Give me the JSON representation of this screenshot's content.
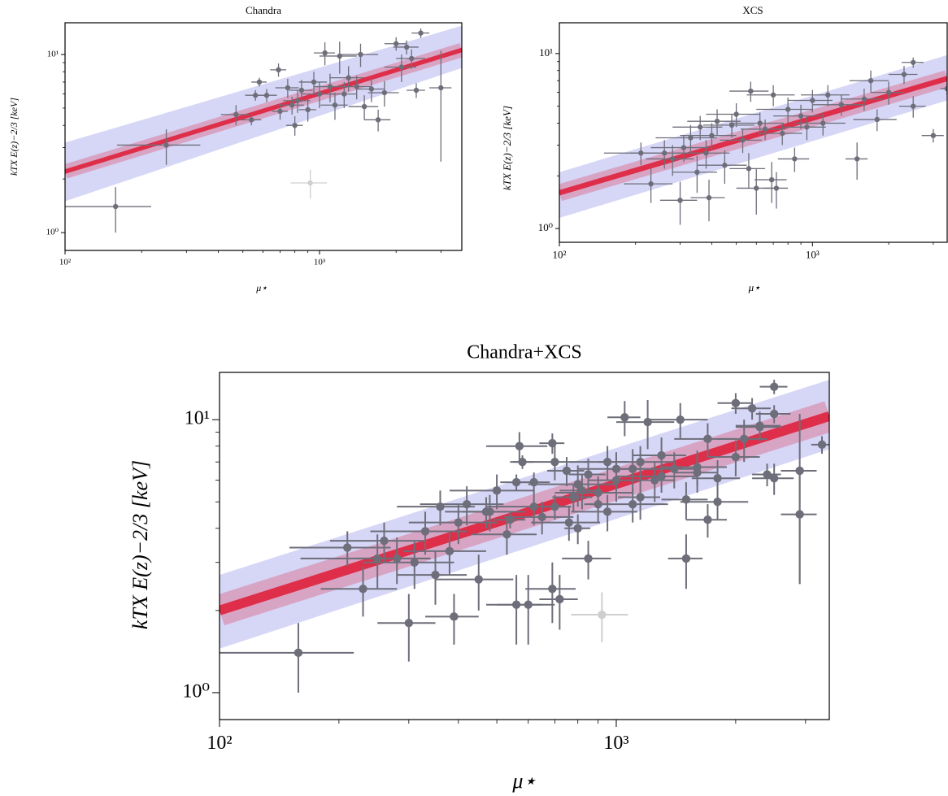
{
  "chart_data": [
    {
      "type": "scatter",
      "title": "Chandra",
      "x_label": "μ⋆",
      "y_label": "kTX E(z)−2/3 [keV]",
      "log_x": true,
      "log_y": true,
      "xlim": [
        100,
        3624
      ],
      "ylim": [
        0.794,
        15.07
      ],
      "xticks": [
        {
          "value": 100,
          "label": "10²"
        },
        {
          "value": 1000,
          "label": "10³"
        }
      ],
      "yticks": [
        {
          "value": 1,
          "label": "10⁰"
        },
        {
          "value": 10,
          "label": "10¹"
        }
      ],
      "xminorticks": [
        200,
        300,
        400,
        500,
        600,
        700,
        800,
        900,
        2000,
        3000
      ],
      "yminorticks": [
        2,
        3,
        4,
        5,
        6,
        7,
        8,
        9
      ],
      "band": {
        "color": "#b4b4f0",
        "x": [
          100,
          3624
        ],
        "lower": [
          1.5,
          8.4
        ],
        "upper": [
          3.2,
          14.5
        ]
      },
      "fit": {
        "color": "#e0102a",
        "x": [
          100,
          3624
        ],
        "values": [
          2.2,
          10.6
        ]
      },
      "series": [
        {
          "color": "#6e6e7a",
          "x": [
            158,
            250,
            470,
            540,
            580,
            560,
            620,
            690,
            700,
            750,
            780,
            800,
            820,
            850,
            900,
            950,
            1000,
            1050,
            1100,
            1150,
            1200,
            1250,
            1300,
            1400,
            1450,
            1500,
            1600,
            1700,
            1800,
            2000,
            2100,
            2200,
            2300,
            2400,
            2500,
            3000
          ],
          "values": [
            1.4,
            3.1,
            4.6,
            4.3,
            7.0,
            5.9,
            5.9,
            8.2,
            4.8,
            6.5,
            5.2,
            4.0,
            5.5,
            6.3,
            4.9,
            7.0,
            6.0,
            10.2,
            6.6,
            5.2,
            9.8,
            6.0,
            7.4,
            6.6,
            10.0,
            5.1,
            6.4,
            4.3,
            6.1,
            11.5,
            8.5,
            11.0,
            9.5,
            6.3,
            13.2,
            6.5
          ],
          "xerr": [
            60,
            90,
            60,
            50,
            40,
            50,
            60,
            50,
            50,
            80,
            90,
            60,
            100,
            90,
            70,
            120,
            150,
            100,
            150,
            140,
            200,
            150,
            200,
            200,
            250,
            200,
            200,
            200,
            250,
            200,
            300,
            250,
            300,
            200,
            200,
            300
          ],
          "yerr": [
            0.4,
            0.7,
            0.6,
            0.3,
            0.4,
            0.4,
            0.5,
            0.7,
            0.5,
            0.8,
            0.6,
            0.5,
            0.8,
            0.9,
            0.7,
            1.0,
            1.0,
            1.5,
            1.2,
            0.9,
            2.0,
            1.0,
            1.2,
            1.0,
            1.5,
            0.8,
            1.0,
            0.6,
            1.0,
            1.0,
            1.5,
            1.0,
            1.2,
            0.6,
            0.8,
            4.0
          ]
        },
        {
          "color": "#cfcfcf",
          "x": [
            920
          ],
          "values": [
            1.9
          ],
          "xerr": [
            150
          ],
          "yerr": [
            0.35
          ]
        }
      ]
    },
    {
      "type": "scatter",
      "title": "XCS",
      "x_label": "μ⋆",
      "y_label": "kTX E(z)−2/3 [keV]",
      "log_x": true,
      "log_y": true,
      "xlim": [
        100,
        3405
      ],
      "ylim": [
        0.834,
        15.0
      ],
      "xticks": [
        {
          "value": 100,
          "label": "10²"
        },
        {
          "value": 1000,
          "label": "10³"
        }
      ],
      "yticks": [
        {
          "value": 1,
          "label": "10⁰"
        },
        {
          "value": 10,
          "label": "10¹"
        }
      ],
      "xminorticks": [
        200,
        300,
        400,
        500,
        600,
        700,
        800,
        900,
        2000,
        3000
      ],
      "yminorticks": [
        2,
        3,
        4,
        5,
        6,
        7,
        8,
        9
      ],
      "band": {
        "color": "#b4b4f0",
        "x": [
          100,
          3405
        ],
        "lower": [
          1.15,
          5.4
        ],
        "upper": [
          2.1,
          9.8
        ]
      },
      "fit": {
        "color": "#e0102a",
        "x": [
          100,
          3405
        ],
        "values": [
          1.6,
          7.2
        ]
      },
      "series": [
        {
          "color": "#6e6e7a",
          "x": [
            210,
            230,
            260,
            280,
            300,
            310,
            330,
            350,
            360,
            380,
            390,
            400,
            420,
            450,
            480,
            500,
            530,
            560,
            570,
            600,
            620,
            650,
            690,
            700,
            720,
            760,
            800,
            850,
            900,
            950,
            1000,
            1100,
            1150,
            1300,
            1500,
            1600,
            1700,
            1800,
            2000,
            2300,
            2500,
            2500,
            3000,
            3400
          ],
          "values": [
            2.7,
            1.8,
            2.7,
            2.5,
            1.45,
            2.9,
            3.3,
            2.1,
            3.8,
            2.7,
            1.5,
            3.4,
            4.1,
            2.3,
            3.9,
            4.5,
            3.2,
            2.2,
            6.1,
            1.7,
            4.0,
            3.7,
            1.9,
            5.8,
            1.7,
            3.5,
            4.8,
            2.5,
            4.4,
            3.8,
            5.4,
            4.0,
            5.8,
            5.1,
            2.5,
            5.5,
            7.0,
            4.2,
            6.0,
            7.6,
            5.0,
            8.9,
            3.4,
            6.3
          ],
          "xerr": [
            60,
            50,
            70,
            60,
            50,
            80,
            90,
            70,
            80,
            90,
            60,
            100,
            100,
            100,
            110,
            120,
            100,
            90,
            100,
            100,
            150,
            130,
            100,
            150,
            80,
            150,
            200,
            120,
            200,
            180,
            200,
            250,
            250,
            300,
            150,
            300,
            300,
            350,
            300,
            300,
            300,
            250,
            300,
            200
          ],
          "yerr": [
            0.4,
            0.4,
            0.5,
            0.5,
            0.4,
            0.5,
            0.6,
            0.5,
            0.6,
            0.5,
            0.4,
            0.6,
            0.7,
            0.5,
            0.6,
            0.7,
            0.5,
            0.5,
            0.8,
            0.5,
            0.6,
            0.5,
            0.5,
            0.8,
            0.4,
            0.5,
            0.8,
            0.4,
            0.7,
            0.6,
            0.8,
            0.6,
            0.8,
            0.7,
            0.6,
            0.8,
            1.0,
            0.6,
            0.9,
            0.9,
            0.7,
            0.6,
            0.3,
            0.5
          ]
        }
      ]
    },
    {
      "type": "scatter",
      "title": "Chandra+XCS",
      "x_label": "μ⋆",
      "y_label": "kTX E(z)−2/3 [keV]",
      "log_x": true,
      "log_y": true,
      "xlim": [
        100,
        3443
      ],
      "ylim": [
        0.797,
        14.9
      ],
      "xticks": [
        {
          "value": 100,
          "label": "10²"
        },
        {
          "value": 1000,
          "label": "10³"
        }
      ],
      "yticks": [
        {
          "value": 1,
          "label": "10⁰"
        },
        {
          "value": 10,
          "label": "10¹"
        }
      ],
      "xminorticks": [
        200,
        300,
        400,
        500,
        600,
        700,
        800,
        900,
        2000,
        3000
      ],
      "yminorticks": [
        2,
        3,
        4,
        5,
        6,
        7,
        8,
        9
      ],
      "band": {
        "color": "#b4b4f0",
        "x": [
          100,
          3443
        ],
        "lower": [
          1.45,
          7.8
        ],
        "upper": [
          2.7,
          14.0
        ]
      },
      "fit": {
        "color": "#e0102a",
        "x": [
          100,
          3443
        ],
        "values": [
          2.0,
          10.3
        ]
      },
      "series": [
        {
          "color": "#6e6e7a",
          "x": [
            158,
            250,
            470,
            540,
            580,
            560,
            620,
            690,
            700,
            750,
            780,
            800,
            820,
            850,
            900,
            950,
            1000,
            1050,
            1100,
            1150,
            1200,
            1250,
            1300,
            1400,
            1450,
            1500,
            1600,
            1700,
            1800,
            2000,
            2100,
            2200,
            2300,
            2400,
            2500,
            2900
          ],
          "values": [
            1.4,
            3.1,
            4.6,
            4.3,
            7.0,
            5.9,
            5.9,
            8.2,
            4.8,
            6.5,
            5.2,
            4.0,
            5.5,
            6.3,
            4.9,
            7.0,
            6.0,
            10.2,
            6.6,
            5.2,
            9.8,
            6.0,
            7.4,
            6.6,
            10.0,
            5.1,
            6.4,
            4.3,
            6.1,
            11.5,
            8.5,
            11.0,
            9.5,
            6.3,
            13.2,
            6.5
          ],
          "xerr": [
            60,
            90,
            60,
            50,
            40,
            50,
            60,
            50,
            50,
            80,
            90,
            60,
            100,
            90,
            70,
            120,
            150,
            100,
            150,
            140,
            200,
            150,
            200,
            200,
            250,
            200,
            200,
            200,
            250,
            200,
            300,
            250,
            300,
            200,
            200,
            300
          ],
          "yerr": [
            0.4,
            0.7,
            0.6,
            0.3,
            0.4,
            0.4,
            0.5,
            0.7,
            0.5,
            0.8,
            0.6,
            0.5,
            0.8,
            0.9,
            0.7,
            1.0,
            1.0,
            1.5,
            1.2,
            0.9,
            2.0,
            1.0,
            1.2,
            1.0,
            1.5,
            0.8,
            1.0,
            0.6,
            1.0,
            1.0,
            1.5,
            1.0,
            1.2,
            0.6,
            0.8,
            4.0
          ]
        },
        {
          "color": "#6e6e7a",
          "x": [
            210,
            230,
            260,
            280,
            300,
            310,
            330,
            350,
            360,
            380,
            390,
            400,
            420,
            450,
            480,
            500,
            530,
            560,
            570,
            600,
            620,
            650,
            690,
            700,
            720,
            760,
            800,
            850,
            900,
            950,
            1000,
            1100,
            1150,
            1300,
            1500,
            1600,
            1700,
            1800,
            2000,
            2300,
            2500,
            2500,
            2900,
            3300
          ],
          "values": [
            3.4,
            2.4,
            3.6,
            3.1,
            1.8,
            3.0,
            3.9,
            2.7,
            4.8,
            3.3,
            1.9,
            4.2,
            4.9,
            2.6,
            4.6,
            5.5,
            3.8,
            2.1,
            8.0,
            2.1,
            4.8,
            4.4,
            2.4,
            7.0,
            2.2,
            4.2,
            5.8,
            3.1,
            5.4,
            4.6,
            6.6,
            4.9,
            7.0,
            6.2,
            3.1,
            6.7,
            8.5,
            5.0,
            7.3,
            9.4,
            6.1,
            10.5,
            4.5,
            8.1
          ],
          "xerr": [
            60,
            50,
            70,
            60,
            50,
            80,
            90,
            70,
            80,
            90,
            60,
            100,
            100,
            100,
            110,
            120,
            100,
            90,
            100,
            100,
            150,
            130,
            100,
            150,
            80,
            150,
            200,
            120,
            200,
            180,
            200,
            250,
            250,
            300,
            150,
            300,
            300,
            350,
            300,
            300,
            300,
            250,
            300,
            200
          ],
          "yerr": [
            0.5,
            0.5,
            0.6,
            0.6,
            0.5,
            0.6,
            0.7,
            0.6,
            0.7,
            0.6,
            0.4,
            0.7,
            0.8,
            0.6,
            0.7,
            0.8,
            0.6,
            0.6,
            1.0,
            0.6,
            0.7,
            0.6,
            0.6,
            1.0,
            0.5,
            0.6,
            1.0,
            0.5,
            0.8,
            0.7,
            1.0,
            0.7,
            1.0,
            0.8,
            0.7,
            1.0,
            1.2,
            0.7,
            1.1,
            1.1,
            0.8,
            0.8,
            2.0,
            0.6
          ]
        },
        {
          "color": "#cfcfcf",
          "x": [
            920
          ],
          "values": [
            1.93
          ],
          "xerr": [
            150
          ],
          "yerr": [
            0.4
          ]
        }
      ]
    }
  ]
}
